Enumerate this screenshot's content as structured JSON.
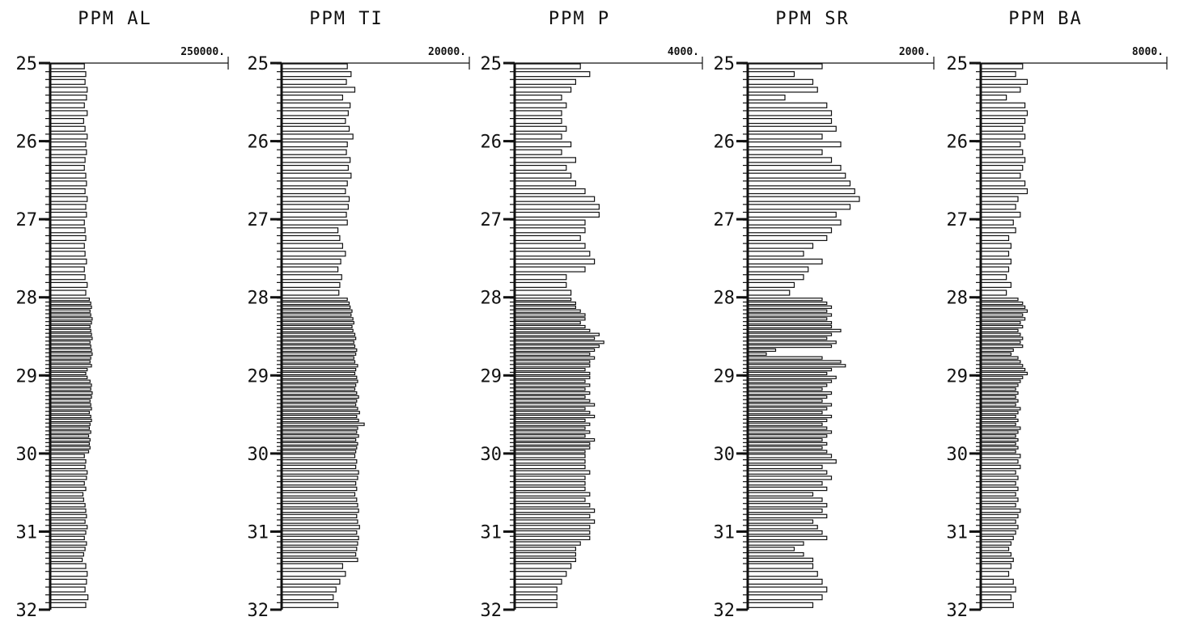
{
  "chart_data": [
    {
      "type": "bar",
      "orientation": "horizontal",
      "title": "PPM AL",
      "ylim": [
        25,
        32
      ],
      "y_ticks": [
        "25",
        "26",
        "27",
        "28",
        "29",
        "30",
        "31",
        "32"
      ],
      "max_label": "250000.",
      "xlim": [
        0,
        250000
      ],
      "depth_steps": [
        0.1,
        0.05,
        0.1,
        0.05
      ],
      "values_per_region": [
        [
          48000,
          50000,
          49000,
          52000,
          51000,
          48000,
          52000,
          47000,
          49000,
          52000,
          50000,
          51000,
          49000,
          48000,
          50000,
          51000,
          49000,
          52000,
          50000,
          51000,
          48000,
          49000,
          50000,
          48000,
          49000,
          51000,
          48000,
          49000,
          52000,
          50000
        ],
        [
          55000,
          57000,
          58000,
          56000,
          57000,
          59000,
          58000,
          56000,
          57000,
          58000,
          59000,
          56000,
          57000,
          58000,
          59000,
          57000,
          56000,
          58000,
          52000,
          50000,
          52000,
          56000,
          58000,
          57000,
          59000,
          58000,
          56000,
          57000,
          58000,
          55000,
          57000,
          58000,
          56000,
          55000,
          57000,
          54000,
          56000,
          55000,
          56000,
          54000
        ],
        [
          48000,
          50000,
          49000,
          52000,
          51000,
          48000,
          50000,
          46000,
          47000,
          49000,
          50000,
          51000,
          49000,
          52000,
          50000,
          48000,
          51000,
          49000,
          47000,
          45000
        ],
        [
          50000,
          52000,
          51000,
          49000,
          53000,
          50000
        ]
      ]
    },
    {
      "type": "bar",
      "orientation": "horizontal",
      "title": "PPM TI",
      "ylim": [
        25,
        32
      ],
      "y_ticks": [
        "25",
        "26",
        "27",
        "28",
        "29",
        "30",
        "31",
        "32"
      ],
      "max_label": "20000.",
      "xlim": [
        0,
        20000
      ],
      "depth_steps": [
        0.1,
        0.05,
        0.1,
        0.05
      ],
      "values_per_region": [
        [
          7000,
          7400,
          6900,
          7800,
          6500,
          7300,
          7100,
          6800,
          7200,
          7600,
          7000,
          6900,
          7300,
          7100,
          7400,
          7000,
          6800,
          7200,
          7100,
          6900,
          7000,
          6000,
          6200,
          6500,
          6800,
          6300,
          6000,
          6400,
          6200,
          6100
        ],
        [
          7000,
          7200,
          7300,
          7500,
          7400,
          7600,
          7700,
          7500,
          7600,
          7800,
          7900,
          7700,
          7800,
          8000,
          7900,
          7700,
          7800,
          8100,
          7900,
          7800,
          8000,
          8100,
          7900,
          7800,
          8000,
          8200,
          8000,
          7900,
          8100,
          8300,
          8000,
          8200,
          8800,
          8100,
          8000,
          8200,
          7900,
          8100,
          8000,
          7900
        ],
        [
          7800,
          8000,
          7900,
          8200,
          8100,
          7900,
          8000,
          7800,
          8000,
          8100,
          8200,
          8000,
          8100,
          8300,
          8000,
          8200,
          8100,
          8000,
          7900,
          8100
        ],
        [
          6500,
          6800,
          6200,
          5800,
          5500,
          6000
        ]
      ]
    },
    {
      "type": "bar",
      "orientation": "horizontal",
      "title": "PPM P",
      "ylim": [
        25,
        32
      ],
      "y_ticks": [
        "25",
        "26",
        "27",
        "28",
        "29",
        "30",
        "31",
        "32"
      ],
      "max_label": "4000.",
      "xlim": [
        0,
        4000
      ],
      "depth_steps": [
        0.1,
        0.05,
        0.1,
        0.05
      ],
      "values_per_region": [
        [
          1400,
          1600,
          1300,
          1200,
          1000,
          1100,
          1000,
          1000,
          1100,
          1000,
          1200,
          1000,
          1300,
          1100,
          1200,
          1300,
          1500,
          1700,
          1800,
          1800,
          1500,
          1500,
          1400,
          1500,
          1600,
          1700,
          1500,
          1100,
          1100,
          1200
        ],
        [
          1200,
          1300,
          1300,
          1400,
          1500,
          1500,
          1400,
          1500,
          1600,
          1800,
          1700,
          1900,
          1800,
          1700,
          1600,
          1700,
          1600,
          1600,
          1500,
          1600,
          1600,
          1500,
          1600,
          1500,
          1600,
          1500,
          1600,
          1700,
          1500,
          1600,
          1700,
          1500,
          1600,
          1500,
          1600,
          1500,
          1700,
          1600,
          1600,
          1500
        ],
        [
          1500,
          1500,
          1500,
          1600,
          1500,
          1500,
          1500,
          1600,
          1500,
          1600,
          1700,
          1600,
          1700,
          1600,
          1600,
          1600,
          1400,
          1300,
          1300,
          1300
        ],
        [
          1200,
          1100,
          1000,
          900,
          900,
          900
        ]
      ]
    },
    {
      "type": "bar",
      "orientation": "horizontal",
      "title": "PPM SR",
      "ylim": [
        25,
        32
      ],
      "y_ticks": [
        "25",
        "26",
        "27",
        "28",
        "29",
        "30",
        "31",
        "32"
      ],
      "max_label": "2000.",
      "xlim": [
        0,
        2000
      ],
      "depth_steps": [
        0.1,
        0.05,
        0.1,
        0.05
      ],
      "values_per_region": [
        [
          800,
          500,
          700,
          750,
          400,
          850,
          900,
          900,
          950,
          800,
          1000,
          800,
          900,
          1000,
          1050,
          1100,
          1150,
          1200,
          1100,
          950,
          1000,
          900,
          850,
          700,
          600,
          800,
          650,
          600,
          500,
          450
        ],
        [
          800,
          850,
          900,
          850,
          900,
          850,
          900,
          900,
          1000,
          900,
          850,
          950,
          900,
          300,
          200,
          800,
          1000,
          1050,
          900,
          850,
          950,
          900,
          850,
          800,
          900,
          850,
          800,
          900,
          850,
          800,
          900,
          850,
          800,
          850,
          900,
          850,
          800,
          850,
          800,
          850
        ],
        [
          900,
          950,
          800,
          850,
          900,
          800,
          850,
          700,
          800,
          850,
          800,
          850,
          700,
          750,
          800,
          850,
          600,
          500,
          600,
          700
        ],
        [
          700,
          750,
          800,
          850,
          800,
          700
        ]
      ]
    },
    {
      "type": "bar",
      "orientation": "horizontal",
      "title": "PPM BA",
      "ylim": [
        25,
        32
      ],
      "y_ticks": [
        "25",
        "26",
        "27",
        "28",
        "29",
        "30",
        "31",
        "32"
      ],
      "max_label": "8000.",
      "xlim": [
        0,
        8000
      ],
      "depth_steps": [
        0.1,
        0.05,
        0.1,
        0.05
      ],
      "values_per_region": [
        [
          1800,
          1500,
          2000,
          1700,
          1100,
          1900,
          2000,
          1900,
          1800,
          1900,
          1700,
          1800,
          1900,
          1800,
          1700,
          1900,
          2000,
          1600,
          1500,
          1700,
          1400,
          1500,
          1200,
          1300,
          1200,
          1300,
          1200,
          1100,
          1300,
          1100
        ],
        [
          1600,
          1800,
          1900,
          2000,
          1800,
          1900,
          1700,
          1800,
          1600,
          1700,
          1800,
          1700,
          1800,
          1400,
          1300,
          1600,
          1700,
          1800,
          1900,
          2000,
          1800,
          1700,
          1600,
          1500,
          1600,
          1500,
          1600,
          1500,
          1700,
          1600,
          1500,
          1600,
          1500,
          1700,
          1600,
          1500,
          1600,
          1500,
          1600,
          1500
        ],
        [
          1700,
          1600,
          1700,
          1500,
          1600,
          1500,
          1600,
          1500,
          1600,
          1500,
          1700,
          1600,
          1500,
          1600,
          1500,
          1400,
          1300,
          1200,
          1300,
          1400
        ],
        [
          1300,
          1200,
          1400,
          1500,
          1300,
          1400
        ]
      ]
    }
  ]
}
